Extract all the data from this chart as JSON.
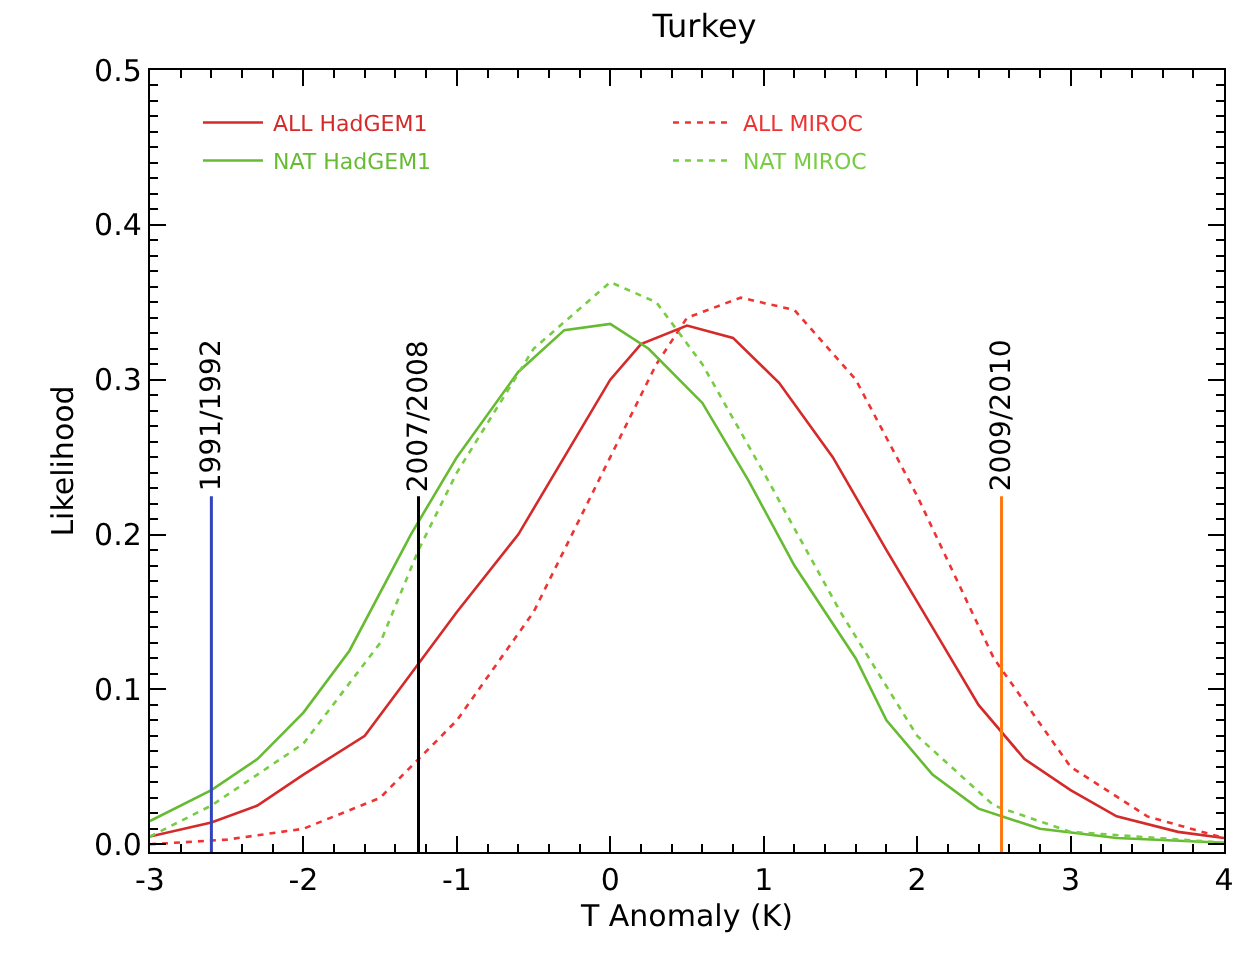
{
  "chart_data": {
    "type": "line",
    "title": "Turkey",
    "xlabel": "T Anomaly (K)",
    "ylabel": "Likelihood",
    "xlim": [
      -3,
      4
    ],
    "xticks": [
      -3,
      -2,
      -1,
      0,
      1,
      2,
      3,
      4
    ],
    "ylim": [
      -0.005,
      0.5
    ],
    "yticks": [
      {
        "value": 0,
        "label": "0.0"
      },
      0.1,
      0.2,
      0.3,
      0.4,
      0.5
    ],
    "legend": "top left",
    "series": [
      {
        "name": "ALL HadGEM1",
        "color": "#d42a2a",
        "line_style": "solid",
        "x": [
          -3,
          -2.6,
          -2.3,
          -2,
          -1.6,
          -1.3,
          -1,
          -0.6,
          -0.3,
          0,
          0.2,
          0.5,
          0.8,
          1.1,
          1.45,
          1.8,
          2.1,
          2.4,
          2.7,
          3,
          3.3,
          3.7,
          4
        ],
        "values": [
          0.005,
          0.014,
          0.025,
          0.045,
          0.07,
          0.11,
          0.15,
          0.2,
          0.25,
          0.3,
          0.323,
          0.335,
          0.327,
          0.298,
          0.25,
          0.19,
          0.14,
          0.09,
          0.055,
          0.035,
          0.018,
          0.008,
          0.004
        ]
      },
      {
        "name": "ALL MIROC",
        "color": "#ee3333",
        "line_style": "dotted",
        "x": [
          -3,
          -2.5,
          -2,
          -1.5,
          -1.25,
          -1,
          -0.5,
          0,
          0.3,
          0.5,
          0.85,
          1.2,
          1.6,
          2,
          2.5,
          3,
          3.5,
          4
        ],
        "values": [
          0.0,
          0.003,
          0.01,
          0.03,
          0.055,
          0.08,
          0.15,
          0.25,
          0.31,
          0.34,
          0.353,
          0.345,
          0.3,
          0.225,
          0.12,
          0.05,
          0.018,
          0.004
        ]
      },
      {
        "name": "NAT HadGEM1",
        "color": "#66bb33",
        "line_style": "solid",
        "x": [
          -3,
          -2.6,
          -2.3,
          -2,
          -1.7,
          -1.3,
          -1,
          -0.6,
          -0.3,
          0,
          0.25,
          0.6,
          0.9,
          1.2,
          1.6,
          1.8,
          2.1,
          2.4,
          2.8,
          3.3,
          4
        ],
        "values": [
          0.015,
          0.035,
          0.055,
          0.085,
          0.125,
          0.2,
          0.25,
          0.305,
          0.332,
          0.336,
          0.32,
          0.285,
          0.235,
          0.18,
          0.12,
          0.08,
          0.045,
          0.023,
          0.01,
          0.004,
          0.001
        ]
      },
      {
        "name": "NAT MIROC",
        "color": "#77cc44",
        "line_style": "dotted",
        "x": [
          -3,
          -2.6,
          -2,
          -1.5,
          -1.25,
          -1,
          -0.5,
          0,
          0.3,
          0.6,
          1,
          1.5,
          2,
          2.5,
          3,
          4
        ],
        "values": [
          0.005,
          0.025,
          0.065,
          0.13,
          0.19,
          0.24,
          0.32,
          0.363,
          0.35,
          0.31,
          0.24,
          0.15,
          0.07,
          0.025,
          0.008,
          0.001
        ]
      }
    ],
    "ref_lines": [
      {
        "axis": "x",
        "value": -2.6,
        "color": "#3344bb"
      },
      {
        "axis": "x",
        "value": -1.25,
        "color": "#000000"
      },
      {
        "axis": "x",
        "value": 2.55,
        "color": "#ff7711"
      }
    ],
    "annotations": [
      {
        "text": "1991/1992",
        "x": -2.6,
        "y": 0.225
      },
      {
        "text": "2007/2008",
        "x": -1.25,
        "y": 0.225
      },
      {
        "text": "2009/2010",
        "x": 2.55,
        "y": 0.225
      }
    ]
  }
}
